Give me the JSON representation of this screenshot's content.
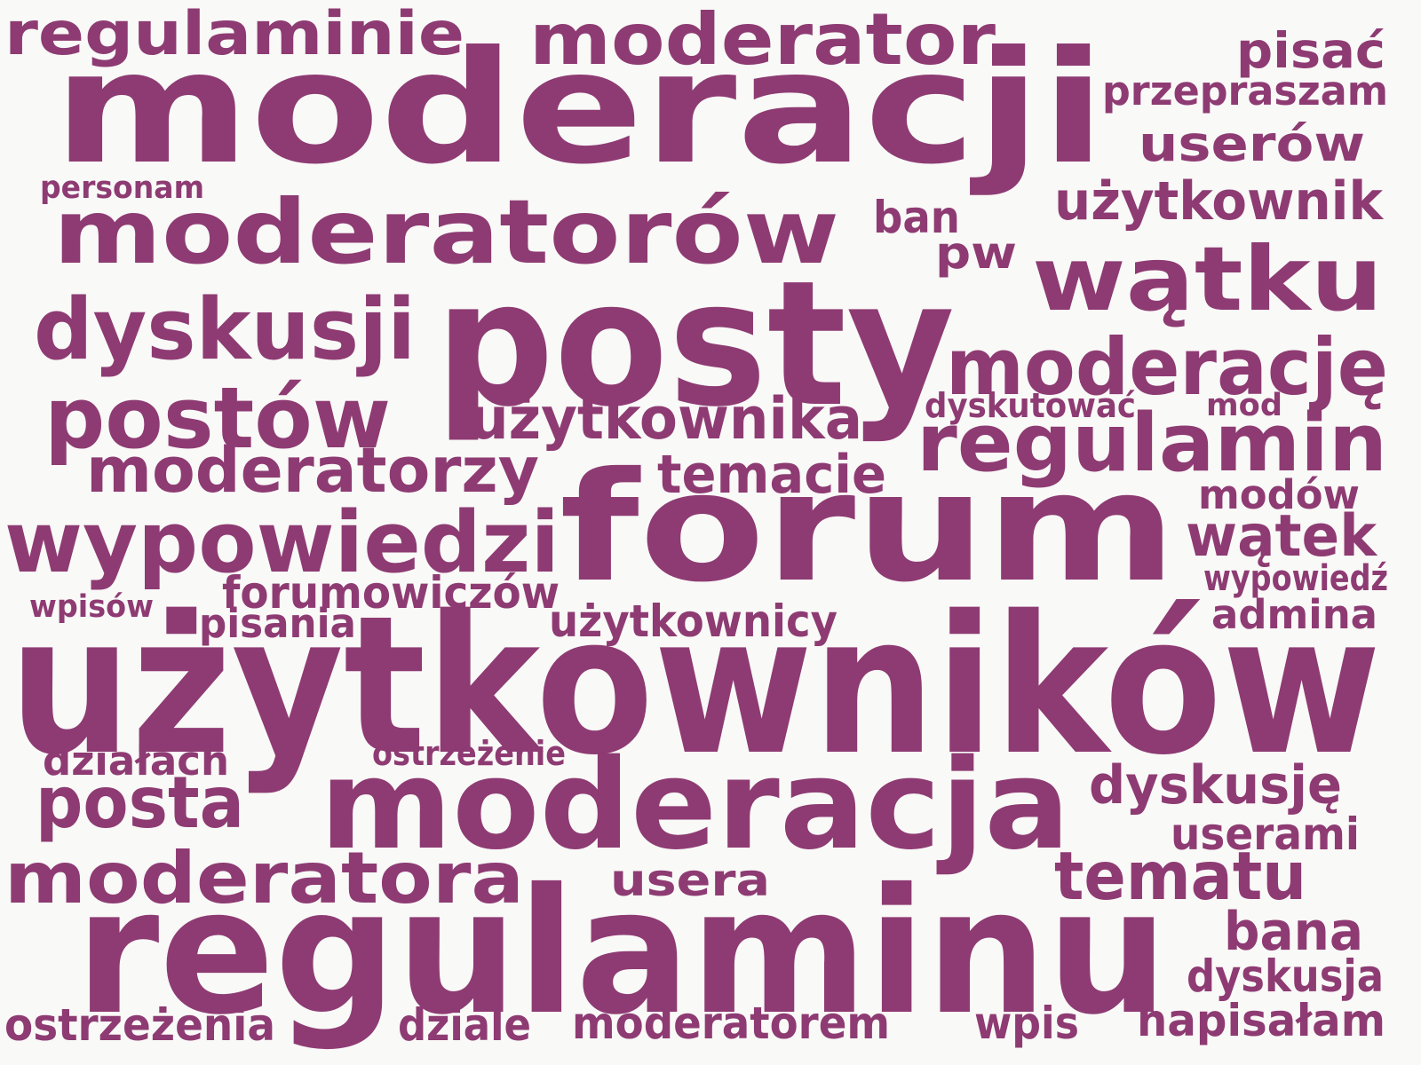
{
  "word_color": "#8e3b73",
  "background_color": "#f9f9f7",
  "words": [
    "moderacji",
    "użytkowników",
    "regulaminu",
    "forum",
    "posty",
    "moderacja",
    "moderatorów",
    "wątku",
    "regulamin",
    "moderację",
    "regulaminie",
    "moderator",
    "dyskusji",
    "postów",
    "wypowiedzi",
    "moderatora",
    "moderatorzy",
    "użytkownika",
    "tematu",
    "posta",
    "użytkownik",
    "userów",
    "pisać",
    "przepraszam",
    "ban",
    "pw",
    "personam",
    "temacie",
    "dyskutować",
    "mod",
    "modów",
    "wątek",
    "forumowiczów",
    "wypowiedź",
    "admina",
    "wpisów",
    "pisania",
    "użytkownicy",
    "działach",
    "ostrzeżenie",
    "dyskusję",
    "userami",
    "usera",
    "bana",
    "dyskusja",
    "ostrzeżenia",
    "dziale",
    "moderatorem",
    "wpis",
    "napisałam"
  ]
}
